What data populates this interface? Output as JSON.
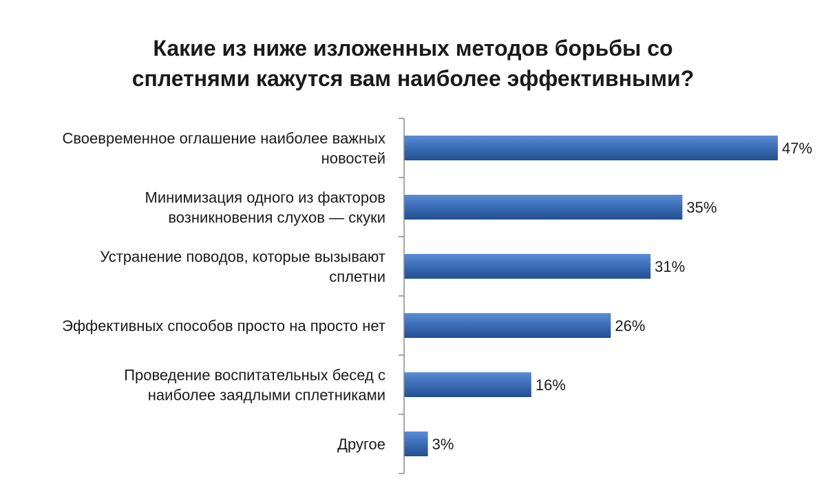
{
  "chart_data": {
    "type": "bar",
    "orientation": "horizontal",
    "title": "Какие из ниже изложенных методов борьбы со\nсплетнями кажутся вам наиболее эффективными?",
    "categories": [
      "Своевременное оглашение наиболее важных\nновостей",
      "Минимизация одного из факторов\nвозникновения слухов — скуки",
      "Устранение поводов, которые вызывают\nсплетни",
      "Эффективных способов просто на просто нет",
      "Проведение воспитательных бесед с\nнаиболее заядлыми сплетниками",
      "Другое"
    ],
    "values": [
      47,
      35,
      31,
      26,
      16,
      3
    ],
    "value_labels": [
      "47%",
      "35%",
      "31%",
      "26%",
      "16%",
      "3%"
    ],
    "unit": "%",
    "xlim": [
      0,
      47
    ],
    "grid": false,
    "legend": "none",
    "bar_color": "#3d6fb8",
    "bar_color_light": "#5b8cd6",
    "bar_color_dark": "#234f91"
  }
}
